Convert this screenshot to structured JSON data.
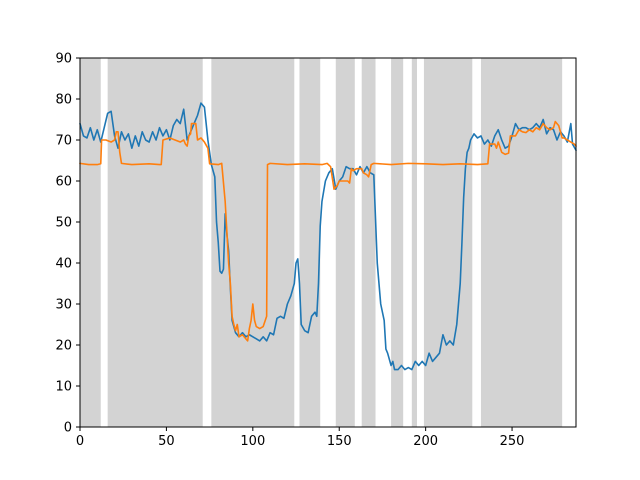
{
  "chart_data": {
    "type": "line",
    "title": "",
    "xlabel": "",
    "ylabel": "",
    "xlim": [
      0,
      287
    ],
    "ylim": [
      0,
      90
    ],
    "x_ticks": [
      0,
      50,
      100,
      150,
      200,
      250
    ],
    "y_ticks": [
      0,
      10,
      20,
      30,
      40,
      50,
      60,
      70,
      80,
      90
    ],
    "grid": false,
    "legend": "none",
    "shaded_bands": {
      "color": "#d3d3d3",
      "ranges": [
        [
          0,
          12
        ],
        [
          16,
          71
        ],
        [
          76,
          124
        ],
        [
          127,
          139
        ],
        [
          148,
          159
        ],
        [
          163,
          171
        ],
        [
          180,
          187
        ],
        [
          192,
          195
        ],
        [
          199,
          227
        ],
        [
          232,
          279
        ]
      ]
    },
    "series": [
      {
        "color": "#1f77b4",
        "points": [
          [
            0,
            74
          ],
          [
            2,
            71
          ],
          [
            4,
            70.5
          ],
          [
            6,
            73
          ],
          [
            8,
            70
          ],
          [
            10,
            72.5
          ],
          [
            12,
            69.5
          ],
          [
            14,
            73
          ],
          [
            16,
            76.5
          ],
          [
            18,
            77
          ],
          [
            20,
            71
          ],
          [
            22,
            68
          ],
          [
            24,
            72
          ],
          [
            26,
            70
          ],
          [
            28,
            71.5
          ],
          [
            30,
            68
          ],
          [
            32,
            71
          ],
          [
            34,
            68.5
          ],
          [
            36,
            72
          ],
          [
            38,
            70
          ],
          [
            40,
            69.5
          ],
          [
            42,
            72
          ],
          [
            44,
            70
          ],
          [
            46,
            73
          ],
          [
            48,
            71
          ],
          [
            50,
            72.5
          ],
          [
            52,
            70
          ],
          [
            54,
            73.5
          ],
          [
            56,
            75
          ],
          [
            58,
            74
          ],
          [
            60,
            77.5
          ],
          [
            62,
            70
          ],
          [
            64,
            72
          ],
          [
            66,
            74
          ],
          [
            68,
            76
          ],
          [
            70,
            79
          ],
          [
            72,
            78
          ],
          [
            74,
            70
          ],
          [
            76,
            64
          ],
          [
            78,
            61
          ],
          [
            79,
            50
          ],
          [
            80,
            45
          ],
          [
            81,
            38
          ],
          [
            82,
            37.5
          ],
          [
            83,
            38.5
          ],
          [
            84,
            52
          ],
          [
            85,
            47
          ],
          [
            86,
            43
          ],
          [
            87,
            34
          ],
          [
            88,
            26
          ],
          [
            90,
            23
          ],
          [
            92,
            22
          ],
          [
            94,
            23
          ],
          [
            96,
            22
          ],
          [
            98,
            22.5
          ],
          [
            100,
            22
          ],
          [
            102,
            21.5
          ],
          [
            104,
            21
          ],
          [
            106,
            22
          ],
          [
            108,
            21
          ],
          [
            110,
            23
          ],
          [
            112,
            22.5
          ],
          [
            114,
            26.5
          ],
          [
            116,
            27
          ],
          [
            118,
            26.5
          ],
          [
            120,
            30
          ],
          [
            122,
            32
          ],
          [
            124,
            35
          ],
          [
            125,
            40
          ],
          [
            126,
            41
          ],
          [
            127,
            35
          ],
          [
            128,
            25
          ],
          [
            130,
            23.5
          ],
          [
            132,
            23
          ],
          [
            134,
            27
          ],
          [
            136,
            28
          ],
          [
            137,
            27
          ],
          [
            138,
            35
          ],
          [
            139,
            49
          ],
          [
            140,
            55
          ],
          [
            142,
            60
          ],
          [
            144,
            62
          ],
          [
            146,
            63
          ],
          [
            148,
            58
          ],
          [
            150,
            60
          ],
          [
            152,
            61
          ],
          [
            154,
            63.5
          ],
          [
            156,
            63
          ],
          [
            158,
            63
          ],
          [
            160,
            61.5
          ],
          [
            162,
            63.5
          ],
          [
            164,
            62
          ],
          [
            166,
            63.5
          ],
          [
            168,
            62
          ],
          [
            170,
            61.5
          ],
          [
            172,
            40
          ],
          [
            174,
            30
          ],
          [
            176,
            26
          ],
          [
            177,
            19
          ],
          [
            178,
            18
          ],
          [
            180,
            15
          ],
          [
            181,
            16
          ],
          [
            182,
            14
          ],
          [
            184,
            14
          ],
          [
            186,
            15
          ],
          [
            188,
            14
          ],
          [
            190,
            14.5
          ],
          [
            192,
            14
          ],
          [
            194,
            16
          ],
          [
            196,
            15
          ],
          [
            198,
            16
          ],
          [
            200,
            15
          ],
          [
            202,
            18
          ],
          [
            204,
            16
          ],
          [
            206,
            17
          ],
          [
            208,
            18
          ],
          [
            210,
            22.5
          ],
          [
            212,
            20
          ],
          [
            214,
            21
          ],
          [
            216,
            20
          ],
          [
            218,
            25
          ],
          [
            220,
            35
          ],
          [
            221,
            45
          ],
          [
            222,
            56
          ],
          [
            223,
            63
          ],
          [
            224,
            67
          ],
          [
            225,
            68
          ],
          [
            226,
            70
          ],
          [
            228,
            71.5
          ],
          [
            230,
            70.5
          ],
          [
            232,
            71
          ],
          [
            234,
            69
          ],
          [
            236,
            70
          ],
          [
            238,
            68.5
          ],
          [
            240,
            71
          ],
          [
            242,
            72.5
          ],
          [
            244,
            70
          ],
          [
            246,
            68
          ],
          [
            248,
            68.5
          ],
          [
            250,
            71
          ],
          [
            252,
            74
          ],
          [
            254,
            72.5
          ],
          [
            256,
            73
          ],
          [
            258,
            73
          ],
          [
            260,
            72.5
          ],
          [
            262,
            73
          ],
          [
            264,
            74
          ],
          [
            266,
            73
          ],
          [
            268,
            75
          ],
          [
            270,
            71.5
          ],
          [
            272,
            73
          ],
          [
            274,
            72.5
          ],
          [
            276,
            70
          ],
          [
            278,
            72
          ],
          [
            280,
            71
          ],
          [
            282,
            69.5
          ],
          [
            284,
            74
          ],
          [
            285,
            69
          ],
          [
            287,
            67.5
          ]
        ]
      },
      {
        "color": "#ff7f0e",
        "points": [
          [
            0,
            64.3
          ],
          [
            5,
            64
          ],
          [
            10,
            64
          ],
          [
            12,
            64.2
          ],
          [
            12.5,
            70
          ],
          [
            15,
            70
          ],
          [
            18,
            69.5
          ],
          [
            20,
            70
          ],
          [
            21,
            72
          ],
          [
            22,
            72
          ],
          [
            23,
            67
          ],
          [
            24,
            64.3
          ],
          [
            30,
            64
          ],
          [
            40,
            64.2
          ],
          [
            46,
            64
          ],
          [
            47,
            64
          ],
          [
            48,
            70
          ],
          [
            52,
            70.5
          ],
          [
            55,
            70
          ],
          [
            58,
            69.5
          ],
          [
            60,
            70
          ],
          [
            61,
            69
          ],
          [
            62,
            68.5
          ],
          [
            63,
            71
          ],
          [
            64,
            71.5
          ],
          [
            64.5,
            74
          ],
          [
            66,
            74
          ],
          [
            67,
            74
          ],
          [
            68,
            70
          ],
          [
            70,
            70.5
          ],
          [
            72,
            69.5
          ],
          [
            74,
            68
          ],
          [
            75,
            64.2
          ],
          [
            80,
            64
          ],
          [
            82,
            64.3
          ],
          [
            84,
            55
          ],
          [
            86,
            40
          ],
          [
            87,
            35
          ],
          [
            88,
            27
          ],
          [
            89,
            25
          ],
          [
            90,
            23.5
          ],
          [
            91,
            25
          ],
          [
            92,
            22
          ],
          [
            94,
            22.5
          ],
          [
            96,
            21.5
          ],
          [
            97,
            21
          ],
          [
            98,
            24
          ],
          [
            99,
            26
          ],
          [
            100,
            30
          ],
          [
            101,
            26
          ],
          [
            102,
            24.5
          ],
          [
            104,
            24
          ],
          [
            106,
            24.5
          ],
          [
            108,
            27
          ],
          [
            108.5,
            64
          ],
          [
            110,
            64.3
          ],
          [
            120,
            64
          ],
          [
            130,
            64.2
          ],
          [
            140,
            64
          ],
          [
            143,
            64.3
          ],
          [
            145,
            63.5
          ],
          [
            147,
            58
          ],
          [
            149,
            59
          ],
          [
            150,
            60
          ],
          [
            155,
            60
          ],
          [
            156,
            59.5
          ],
          [
            157,
            63
          ],
          [
            158,
            62.5
          ],
          [
            160,
            63
          ],
          [
            163,
            63
          ],
          [
            164,
            62
          ],
          [
            166,
            61.5
          ],
          [
            167,
            61
          ],
          [
            168,
            63
          ],
          [
            168.5,
            64
          ],
          [
            170,
            64.3
          ],
          [
            180,
            64
          ],
          [
            190,
            64.3
          ],
          [
            200,
            64.2
          ],
          [
            210,
            64
          ],
          [
            220,
            64.2
          ],
          [
            230,
            64
          ],
          [
            236,
            64.2
          ],
          [
            237,
            69
          ],
          [
            240,
            69
          ],
          [
            241,
            68
          ],
          [
            242,
            69.5
          ],
          [
            244,
            67
          ],
          [
            246,
            66.5
          ],
          [
            248,
            66.8
          ],
          [
            249,
            71
          ],
          [
            252,
            71
          ],
          [
            254,
            72.5
          ],
          [
            256,
            72
          ],
          [
            258,
            71.8
          ],
          [
            260,
            72.5
          ],
          [
            262,
            72
          ],
          [
            264,
            73
          ],
          [
            266,
            72.5
          ],
          [
            268,
            74
          ],
          [
            270,
            73
          ],
          [
            272,
            72.5
          ],
          [
            274,
            73
          ],
          [
            275,
            74.5
          ],
          [
            276,
            74
          ],
          [
            277,
            73.5
          ],
          [
            278,
            72
          ],
          [
            279,
            70.5
          ],
          [
            280,
            70.5
          ],
          [
            282,
            70
          ],
          [
            284,
            69.5
          ],
          [
            286,
            69
          ],
          [
            287,
            68.5
          ]
        ]
      }
    ]
  }
}
